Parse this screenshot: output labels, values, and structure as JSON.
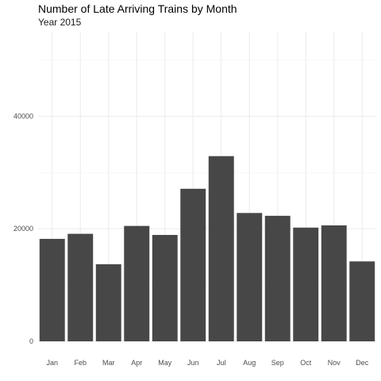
{
  "chart_data": {
    "type": "bar",
    "title": "Number of Late Arriving Trains by Month",
    "subtitle": "Year 2015",
    "xlabel": "",
    "ylabel": "",
    "categories": [
      "Jan",
      "Feb",
      "Mar",
      "Apr",
      "May",
      "Jun",
      "Jul",
      "Aug",
      "Sep",
      "Oct",
      "Nov",
      "Dec"
    ],
    "values": [
      18200,
      19100,
      13700,
      20500,
      18900,
      27100,
      32900,
      22800,
      22300,
      20200,
      20600,
      14200
    ],
    "ylim": [
      0,
      55000
    ],
    "yticks": [
      0,
      20000,
      40000
    ],
    "ytick_labels": [
      "0",
      "20000",
      "40000"
    ],
    "grid": true,
    "colors": {
      "bar": "#474747",
      "grid_major": "#ebebeb",
      "grid_minor": "#f4f4f4",
      "tick_text": "#4d4d4d"
    }
  }
}
